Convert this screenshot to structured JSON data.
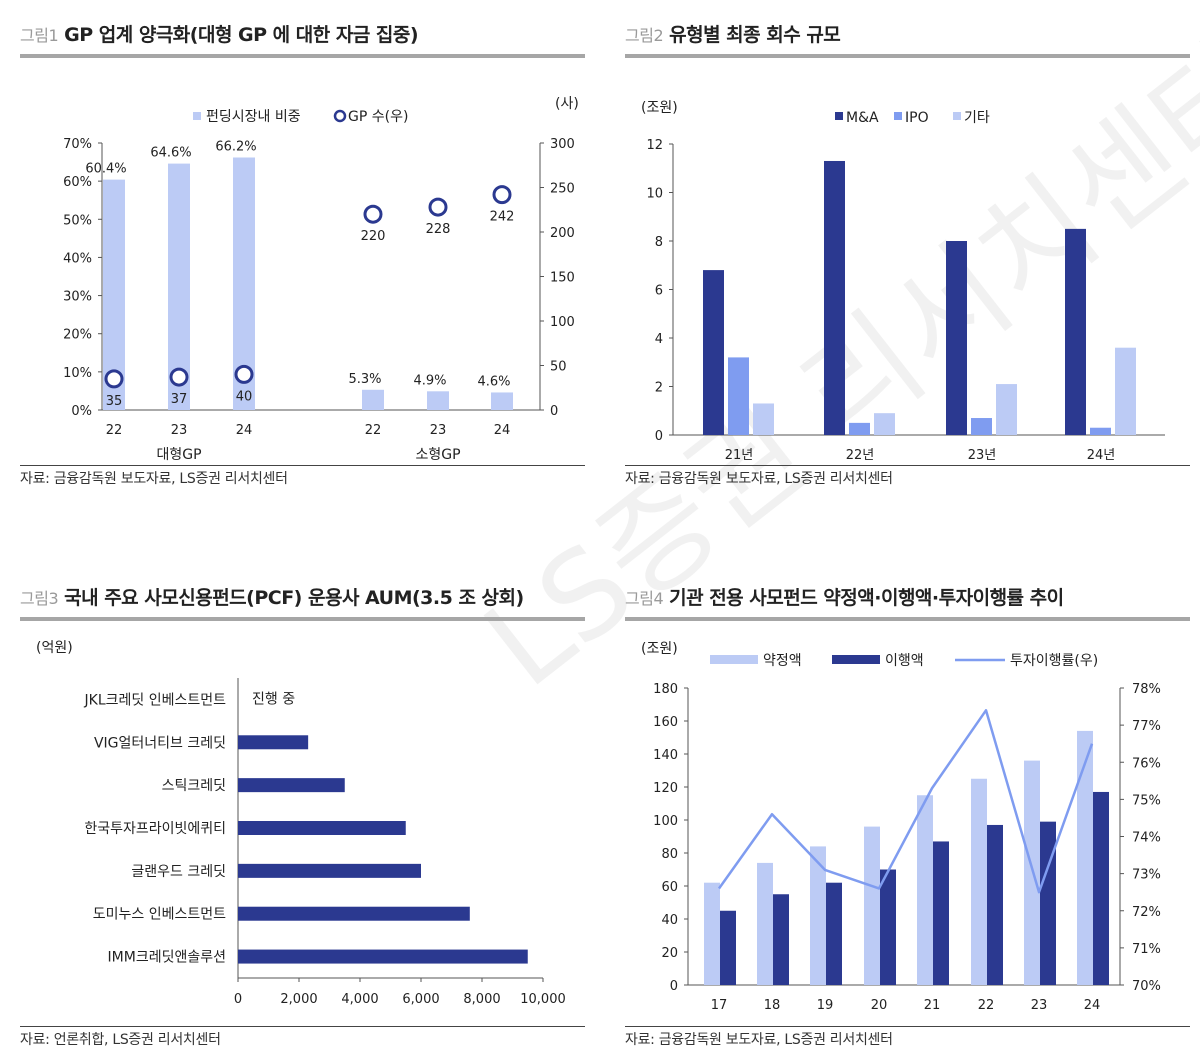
{
  "watermark": "LS증권 리서치센터",
  "colors": {
    "navy": "#2b3990",
    "light": "#bccbf5",
    "mid": "#7f9cf0",
    "line": "#7f9cf0"
  },
  "fig1": {
    "label": "그림1",
    "title": "GP 업계 양극화(대형 GP 에 대한 자금 집중)",
    "source": "자료: 금융감독원 보도자료, LS증권 리서치센터",
    "chart_data": {
      "type": "bar",
      "legend": [
        "펀딩시장내 비중",
        "GP 수(우)"
      ],
      "right_unit": "(사)",
      "groups": [
        "대형GP",
        "소형GP"
      ],
      "categories": [
        "22",
        "23",
        "24",
        "22",
        "23",
        "24"
      ],
      "bar_values": [
        60.4,
        64.6,
        66.2,
        5.3,
        4.9,
        4.6
      ],
      "bar_labels": [
        "60.4%",
        "64.6%",
        "66.2%",
        "5.3%",
        "4.9%",
        "4.6%"
      ],
      "gp_values": [
        35,
        37,
        40,
        220,
        228,
        242
      ],
      "gp_labels": [
        "35",
        "37",
        "40",
        "220",
        "228",
        "242"
      ],
      "yleft_ticks": [
        "0%",
        "10%",
        "20%",
        "30%",
        "40%",
        "50%",
        "60%",
        "70%"
      ],
      "yright_ticks": [
        "0",
        "50",
        "100",
        "150",
        "200",
        "250",
        "300"
      ],
      "ylim_left": [
        0,
        70
      ],
      "ylim_right": [
        0,
        300
      ]
    }
  },
  "fig2": {
    "label": "그림2",
    "title": "유형별 최종 회수 규모",
    "source": "자료: 금융감독원 보도자료, LS증권 리서치센터",
    "chart_data": {
      "type": "bar",
      "unit": "(조원)",
      "categories": [
        "21년",
        "22년",
        "23년",
        "24년"
      ],
      "series": [
        {
          "name": "M&A",
          "values": [
            6.8,
            11.3,
            8.0,
            8.5
          ]
        },
        {
          "name": "IPO",
          "values": [
            3.2,
            0.5,
            0.7,
            0.3
          ]
        },
        {
          "name": "기타",
          "values": [
            1.3,
            0.9,
            2.1,
            3.6
          ]
        }
      ],
      "yticks": [
        "0",
        "2",
        "4",
        "6",
        "8",
        "10",
        "12"
      ],
      "ylim": [
        0,
        12
      ]
    }
  },
  "fig3": {
    "label": "그림3",
    "title": "국내 주요 사모신용펀드(PCF) 운용사 AUM(3.5 조 상회)",
    "source": "자료: 언론취합, LS증권 리서치센터",
    "chart_data": {
      "type": "bar",
      "orientation": "horizontal",
      "unit": "(억원)",
      "categories": [
        "JKL크레딧 인베스트먼트",
        "VIG얼터너티브 크레딧",
        "스틱크레딧",
        "한국투자프라이빗에퀴티",
        "글랜우드 크레딧",
        "도미누스 인베스트먼트",
        "IMM크레딧앤솔루션"
      ],
      "values": [
        null,
        2300,
        3500,
        5500,
        6000,
        7600,
        9500
      ],
      "annotation": "진행 중",
      "xticks": [
        "0",
        "2,000",
        "4,000",
        "6,000",
        "8,000",
        "10,000"
      ],
      "xlim": [
        0,
        10000
      ]
    }
  },
  "fig4": {
    "label": "그림4",
    "title": "기관 전용 사모펀드 약정액·이행액·투자이행률 추이",
    "source": "자료: 금융감독원 보도자료, LS증권 리서치센터",
    "chart_data": {
      "type": "bar",
      "unit": "(조원)",
      "categories": [
        "17",
        "18",
        "19",
        "20",
        "21",
        "22",
        "23",
        "24"
      ],
      "series": [
        {
          "name": "약정액",
          "values": [
            62,
            74,
            84,
            96,
            115,
            125,
            136,
            154
          ]
        },
        {
          "name": "이행액",
          "values": [
            45,
            55,
            62,
            70,
            87,
            97,
            99,
            117
          ]
        },
        {
          "name": "투자이행률(우)",
          "values": [
            72.6,
            74.6,
            73.1,
            72.6,
            75.3,
            77.4,
            72.5,
            76.5
          ]
        }
      ],
      "yleft_ticks": [
        "0",
        "20",
        "40",
        "60",
        "80",
        "100",
        "120",
        "140",
        "160",
        "180"
      ],
      "yright_ticks": [
        "70%",
        "71%",
        "72%",
        "73%",
        "74%",
        "75%",
        "76%",
        "77%",
        "78%"
      ],
      "ylim_left": [
        0,
        180
      ],
      "ylim_right": [
        70,
        78
      ]
    }
  }
}
